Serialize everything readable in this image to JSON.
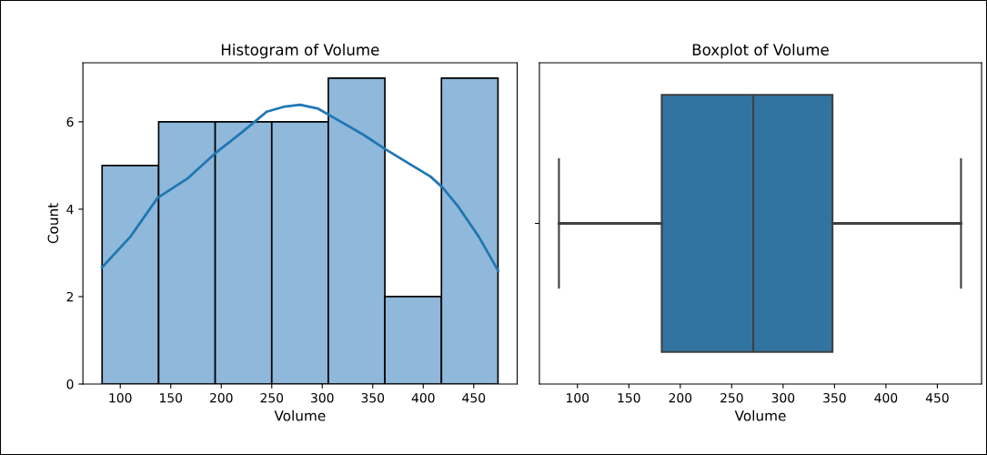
{
  "chart_data": [
    {
      "type": "histogram",
      "title": "Histogram of Volume",
      "xlabel": "Volume",
      "ylabel": "Count",
      "bins": [
        82,
        138,
        194,
        250,
        306,
        362,
        418,
        474
      ],
      "values": [
        5,
        6,
        6,
        6,
        7,
        2,
        7
      ],
      "color": "#8fb8da",
      "xlim": [
        63,
        493
      ],
      "xticks": [
        100,
        150,
        200,
        250,
        300,
        350,
        400,
        450
      ],
      "ylim": [
        0,
        7.35
      ],
      "yticks": [
        0,
        2,
        4,
        6
      ],
      "grid": false,
      "series": [
        {
          "type": "line",
          "color": "#1f77b4",
          "x": [
            82,
            110,
            137,
            167,
            194,
            221,
            245,
            263,
            278,
            296,
            317,
            341,
            362,
            389,
            407,
            419,
            434,
            455,
            474
          ],
          "values": [
            2.67,
            3.37,
            4.26,
            4.71,
            5.28,
            5.77,
            6.23,
            6.35,
            6.39,
            6.3,
            6.02,
            5.7,
            5.38,
            5.0,
            4.75,
            4.5,
            4.08,
            3.37,
            2.6
          ]
        }
      ]
    },
    {
      "type": "box",
      "title": "Boxplot of Volume",
      "xlabel": "Volume",
      "orientation": "horizontal",
      "categories": [
        null
      ],
      "color": "#3274a1",
      "xlim": [
        63,
        493
      ],
      "xticks": [
        100,
        150,
        200,
        250,
        300,
        350,
        400,
        450
      ],
      "grid": false,
      "boxes": [
        {
          "low": 82,
          "q1": 182,
          "median": 271,
          "q3": 348,
          "high": 473
        }
      ]
    }
  ]
}
